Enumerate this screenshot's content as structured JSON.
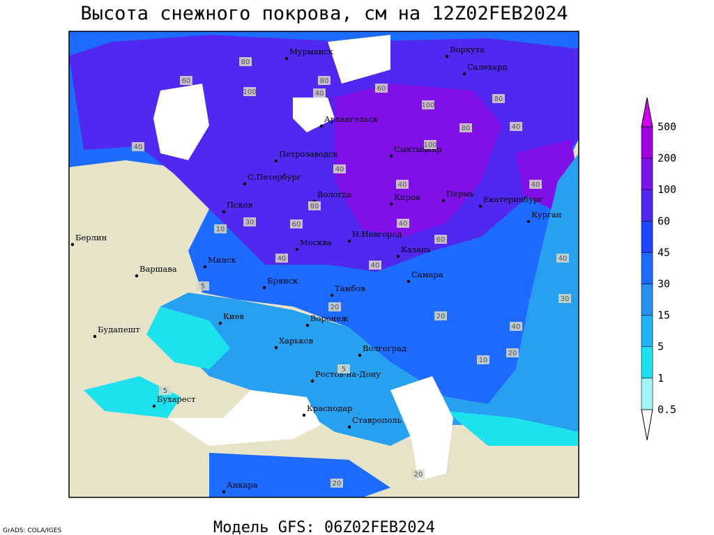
{
  "header": {
    "title": "Высота снежного покрова, см на 12Z02FEB2024"
  },
  "footer": {
    "model": "Модель GFS: 06Z02FEB2024",
    "credit": "GrADS: COLA/IGES"
  },
  "legend": {
    "levels": [
      0.5,
      1,
      5,
      15,
      30,
      45,
      60,
      100,
      200,
      500
    ],
    "colors": [
      "#ffffff",
      "#a0f5f5",
      "#1ee1ee",
      "#1eb4f5",
      "#2890f0",
      "#1e6cff",
      "#1e46ff",
      "#5028f0",
      "#7814e8",
      "#a000e0",
      "#d200f0"
    ]
  },
  "cities": [
    "Мурманск",
    "Воркута",
    "Салехард",
    "Архангельск",
    "Петрозаводск",
    "Сыктывкар",
    "С.Петербург",
    "Вологда",
    "Киров",
    "Пермь",
    "Екатеринбург",
    "Курган",
    "Псков",
    "Берлин",
    "Н.Новгород",
    "Москва",
    "Казань",
    "Минск",
    "Варшава",
    "Брянск",
    "Самара",
    "Тамбов",
    "Киев",
    "Воронеж",
    "Будапешт",
    "Харьков",
    "Волгоград",
    "Ростов-на-Дону",
    "Бухарест",
    "Краснодар",
    "Ставрополь",
    "Анкара"
  ],
  "contour_labels": [
    "80",
    "60",
    "100",
    "80",
    "40",
    "60",
    "80",
    "40",
    "100",
    "100",
    "80",
    "40",
    "40",
    "40",
    "80",
    "60",
    "40",
    "40",
    "60",
    "30",
    "10",
    "5",
    "40",
    "40",
    "20",
    "20",
    "40",
    "30",
    "20",
    "10",
    "5",
    "20",
    "5",
    "20",
    "40"
  ]
}
